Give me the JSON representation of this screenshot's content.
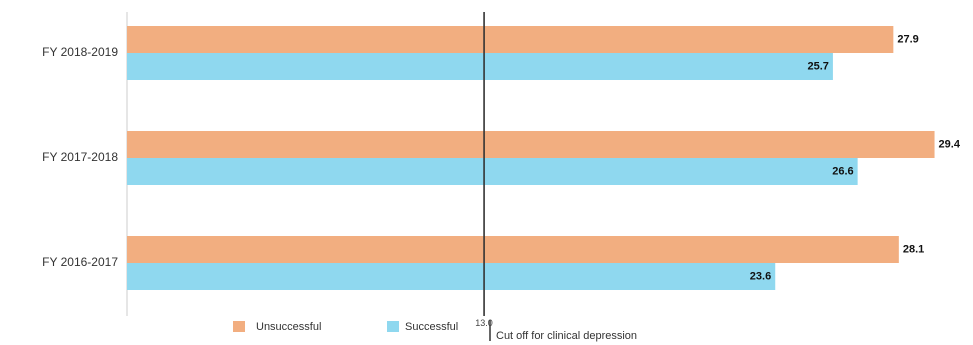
{
  "chart_data": {
    "type": "bar",
    "orientation": "horizontal",
    "categories": [
      "FY 2018-2019",
      "FY 2017-2018",
      "FY 2016-2017"
    ],
    "series": [
      {
        "name": "Unsuccessful",
        "color": "#F2AE80",
        "values": [
          27.9,
          29.4,
          28.1
        ]
      },
      {
        "name": "Successful",
        "color": "#8FD8EF",
        "values": [
          25.7,
          26.6,
          23.6
        ]
      }
    ],
    "xlim": [
      0,
      30.8
    ],
    "reference_line": {
      "value": 13.0,
      "tick_label": "13.0",
      "legend_label": "Cut off for clinical depression"
    },
    "legend_position": "bottom",
    "grid": false,
    "title": "",
    "xlabel": "",
    "ylabel": ""
  }
}
